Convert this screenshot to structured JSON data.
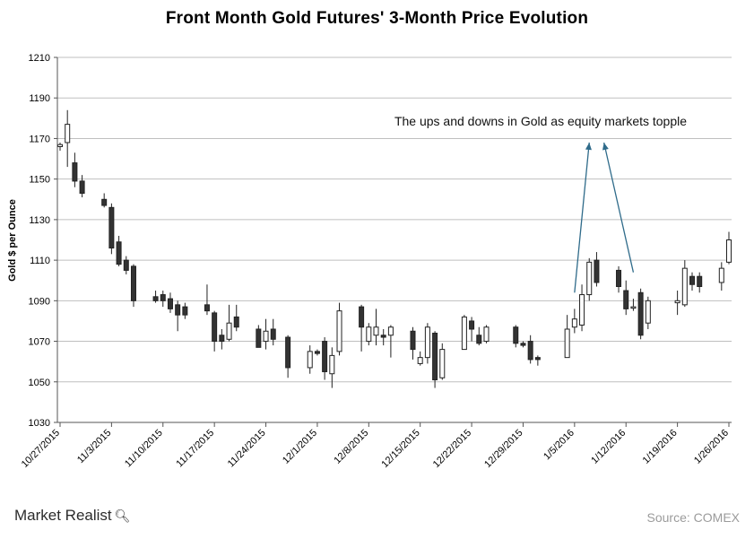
{
  "title": "Front Month Gold Futures' 3-Month Price Evolution",
  "source": "Source: COMEX",
  "logo": {
    "text": "Market Realist",
    "icon": "magnifier-icon"
  },
  "chart_data": {
    "type": "candlestick",
    "ylabel": "Gold  $ per Ounce",
    "xlabel": "",
    "ylim": [
      1030,
      1210
    ],
    "yticks": [
      1030,
      1050,
      1070,
      1090,
      1110,
      1130,
      1150,
      1170,
      1190,
      1210
    ],
    "xlim": [
      "10/27/2015",
      "1/26/2016"
    ],
    "xticks": [
      "10/27/2015",
      "11/3/2015",
      "11/10/2015",
      "11/17/2015",
      "11/24/2015",
      "12/1/2015",
      "12/8/2015",
      "12/15/2015",
      "12/22/2015",
      "12/29/2015",
      "1/5/2016",
      "1/12/2016",
      "1/19/2016",
      "1/26/2016"
    ],
    "grid": "horizontal",
    "colors": {
      "up": "#ffffff",
      "down": "#333333",
      "outline": "#222222",
      "arrow": "#2f6b8a",
      "grid": "#bfbfbf"
    },
    "annotation": {
      "text": "The ups and downs in Gold as equity markets topple",
      "x": "1/12/2016",
      "y": 1172
    },
    "arrows": [
      {
        "from": [
          "1/5/2016",
          1094
        ],
        "to": [
          "1/7/2016",
          1168
        ]
      },
      {
        "from": [
          "1/13/2016",
          1104
        ],
        "to": [
          "1/9/2016",
          1168
        ]
      }
    ],
    "series": [
      {
        "date": "10/27/2015",
        "open": 1166,
        "high": 1168,
        "low": 1164,
        "close": 1167
      },
      {
        "date": "10/28/2015",
        "open": 1168,
        "high": 1184,
        "low": 1156,
        "close": 1177
      },
      {
        "date": "10/29/2015",
        "open": 1158,
        "high": 1163,
        "low": 1146,
        "close": 1149
      },
      {
        "date": "10/30/2015",
        "open": 1149,
        "high": 1152,
        "low": 1141,
        "close": 1143
      },
      {
        "date": "11/2/2015",
        "open": 1140,
        "high": 1143,
        "low": 1136,
        "close": 1137
      },
      {
        "date": "11/3/2015",
        "open": 1136,
        "high": 1138,
        "low": 1113,
        "close": 1116
      },
      {
        "date": "11/4/2015",
        "open": 1119,
        "high": 1122,
        "low": 1107,
        "close": 1108
      },
      {
        "date": "11/5/2015",
        "open": 1110,
        "high": 1112,
        "low": 1103,
        "close": 1105
      },
      {
        "date": "11/6/2015",
        "open": 1107,
        "high": 1108,
        "low": 1087,
        "close": 1090
      },
      {
        "date": "11/9/2015",
        "open": 1092,
        "high": 1095,
        "low": 1089,
        "close": 1090
      },
      {
        "date": "11/10/2015",
        "open": 1093,
        "high": 1095,
        "low": 1087,
        "close": 1090
      },
      {
        "date": "11/11/2015",
        "open": 1091,
        "high": 1094,
        "low": 1084,
        "close": 1086
      },
      {
        "date": "11/12/2015",
        "open": 1088,
        "high": 1090,
        "low": 1075,
        "close": 1083
      },
      {
        "date": "11/13/2015",
        "open": 1087,
        "high": 1089,
        "low": 1081,
        "close": 1083
      },
      {
        "date": "11/16/2015",
        "open": 1088,
        "high": 1098,
        "low": 1083,
        "close": 1085
      },
      {
        "date": "11/17/2015",
        "open": 1084,
        "high": 1085,
        "low": 1065,
        "close": 1070
      },
      {
        "date": "11/18/2015",
        "open": 1073,
        "high": 1076,
        "low": 1066,
        "close": 1070
      },
      {
        "date": "11/19/2015",
        "open": 1071,
        "high": 1088,
        "low": 1070,
        "close": 1079
      },
      {
        "date": "11/20/2015",
        "open": 1082,
        "high": 1088,
        "low": 1075,
        "close": 1077
      },
      {
        "date": "11/23/2015",
        "open": 1076,
        "high": 1078,
        "low": 1067,
        "close": 1067
      },
      {
        "date": "11/24/2015",
        "open": 1070,
        "high": 1081,
        "low": 1066,
        "close": 1075
      },
      {
        "date": "11/25/2015",
        "open": 1076,
        "high": 1081,
        "low": 1068,
        "close": 1071
      },
      {
        "date": "11/27/2015",
        "open": 1072,
        "high": 1073,
        "low": 1052,
        "close": 1057
      },
      {
        "date": "11/30/2015",
        "open": 1057,
        "high": 1068,
        "low": 1054,
        "close": 1065
      },
      {
        "date": "12/1/2015",
        "open": 1065,
        "high": 1066,
        "low": 1063,
        "close": 1064
      },
      {
        "date": "12/2/2015",
        "open": 1070,
        "high": 1072,
        "low": 1051,
        "close": 1055
      },
      {
        "date": "12/3/2015",
        "open": 1054,
        "high": 1067,
        "low": 1047,
        "close": 1063
      },
      {
        "date": "12/4/2015",
        "open": 1065,
        "high": 1089,
        "low": 1063,
        "close": 1085
      },
      {
        "date": "12/7/2015",
        "open": 1087,
        "high": 1088,
        "low": 1065,
        "close": 1077
      },
      {
        "date": "12/8/2015",
        "open": 1070,
        "high": 1079,
        "low": 1068,
        "close": 1077
      },
      {
        "date": "12/9/2015",
        "open": 1073,
        "high": 1086,
        "low": 1068,
        "close": 1077
      },
      {
        "date": "12/10/2015",
        "open": 1073,
        "high": 1076,
        "low": 1068,
        "close": 1072
      },
      {
        "date": "12/11/2015",
        "open": 1073,
        "high": 1078,
        "low": 1062,
        "close": 1077
      },
      {
        "date": "12/14/2015",
        "open": 1075,
        "high": 1077,
        "low": 1061,
        "close": 1066
      },
      {
        "date": "12/15/2015",
        "open": 1059,
        "high": 1065,
        "low": 1058,
        "close": 1062
      },
      {
        "date": "12/16/2015",
        "open": 1062,
        "high": 1079,
        "low": 1059,
        "close": 1077
      },
      {
        "date": "12/17/2015",
        "open": 1074,
        "high": 1075,
        "low": 1047,
        "close": 1051
      },
      {
        "date": "12/18/2015",
        "open": 1052,
        "high": 1069,
        "low": 1051,
        "close": 1066
      },
      {
        "date": "12/21/2015",
        "open": 1066,
        "high": 1083,
        "low": 1066,
        "close": 1082
      },
      {
        "date": "12/22/2015",
        "open": 1080,
        "high": 1082,
        "low": 1070,
        "close": 1076
      },
      {
        "date": "12/23/2015",
        "open": 1073,
        "high": 1077,
        "low": 1068,
        "close": 1069
      },
      {
        "date": "12/24/2015",
        "open": 1070,
        "high": 1078,
        "low": 1069,
        "close": 1077
      },
      {
        "date": "12/28/2015",
        "open": 1077,
        "high": 1078,
        "low": 1067,
        "close": 1069
      },
      {
        "date": "12/29/2015",
        "open": 1069,
        "high": 1070,
        "low": 1067,
        "close": 1068
      },
      {
        "date": "12/30/2015",
        "open": 1070,
        "high": 1073,
        "low": 1059,
        "close": 1061
      },
      {
        "date": "12/31/2015",
        "open": 1062,
        "high": 1063,
        "low": 1058,
        "close": 1061
      },
      {
        "date": "1/4/2016",
        "open": 1062,
        "high": 1083,
        "low": 1062,
        "close": 1076
      },
      {
        "date": "1/5/2016",
        "open": 1077,
        "high": 1086,
        "low": 1074,
        "close": 1081
      },
      {
        "date": "1/6/2016",
        "open": 1078,
        "high": 1098,
        "low": 1075,
        "close": 1093
      },
      {
        "date": "1/7/2016",
        "open": 1093,
        "high": 1111,
        "low": 1090,
        "close": 1109
      },
      {
        "date": "1/8/2016",
        "open": 1110,
        "high": 1114,
        "low": 1097,
        "close": 1099
      },
      {
        "date": "1/11/2016",
        "open": 1105,
        "high": 1107,
        "low": 1094,
        "close": 1097
      },
      {
        "date": "1/12/2016",
        "open": 1095,
        "high": 1100,
        "low": 1083,
        "close": 1086
      },
      {
        "date": "1/13/2016",
        "open": 1087,
        "high": 1091,
        "low": 1085,
        "close": 1087
      },
      {
        "date": "1/14/2016",
        "open": 1094,
        "high": 1096,
        "low": 1071,
        "close": 1073
      },
      {
        "date": "1/15/2016",
        "open": 1079,
        "high": 1092,
        "low": 1076,
        "close": 1090
      },
      {
        "date": "1/19/2016",
        "open": 1089,
        "high": 1095,
        "low": 1083,
        "close": 1090
      },
      {
        "date": "1/20/2016",
        "open": 1088,
        "high": 1110,
        "low": 1087,
        "close": 1106
      },
      {
        "date": "1/21/2016",
        "open": 1102,
        "high": 1104,
        "low": 1095,
        "close": 1098
      },
      {
        "date": "1/22/2016",
        "open": 1102,
        "high": 1104,
        "low": 1094,
        "close": 1097
      },
      {
        "date": "1/25/2016",
        "open": 1099,
        "high": 1109,
        "low": 1095,
        "close": 1106
      },
      {
        "date": "1/26/2016",
        "open": 1109,
        "high": 1124,
        "low": 1108,
        "close": 1120
      }
    ]
  }
}
